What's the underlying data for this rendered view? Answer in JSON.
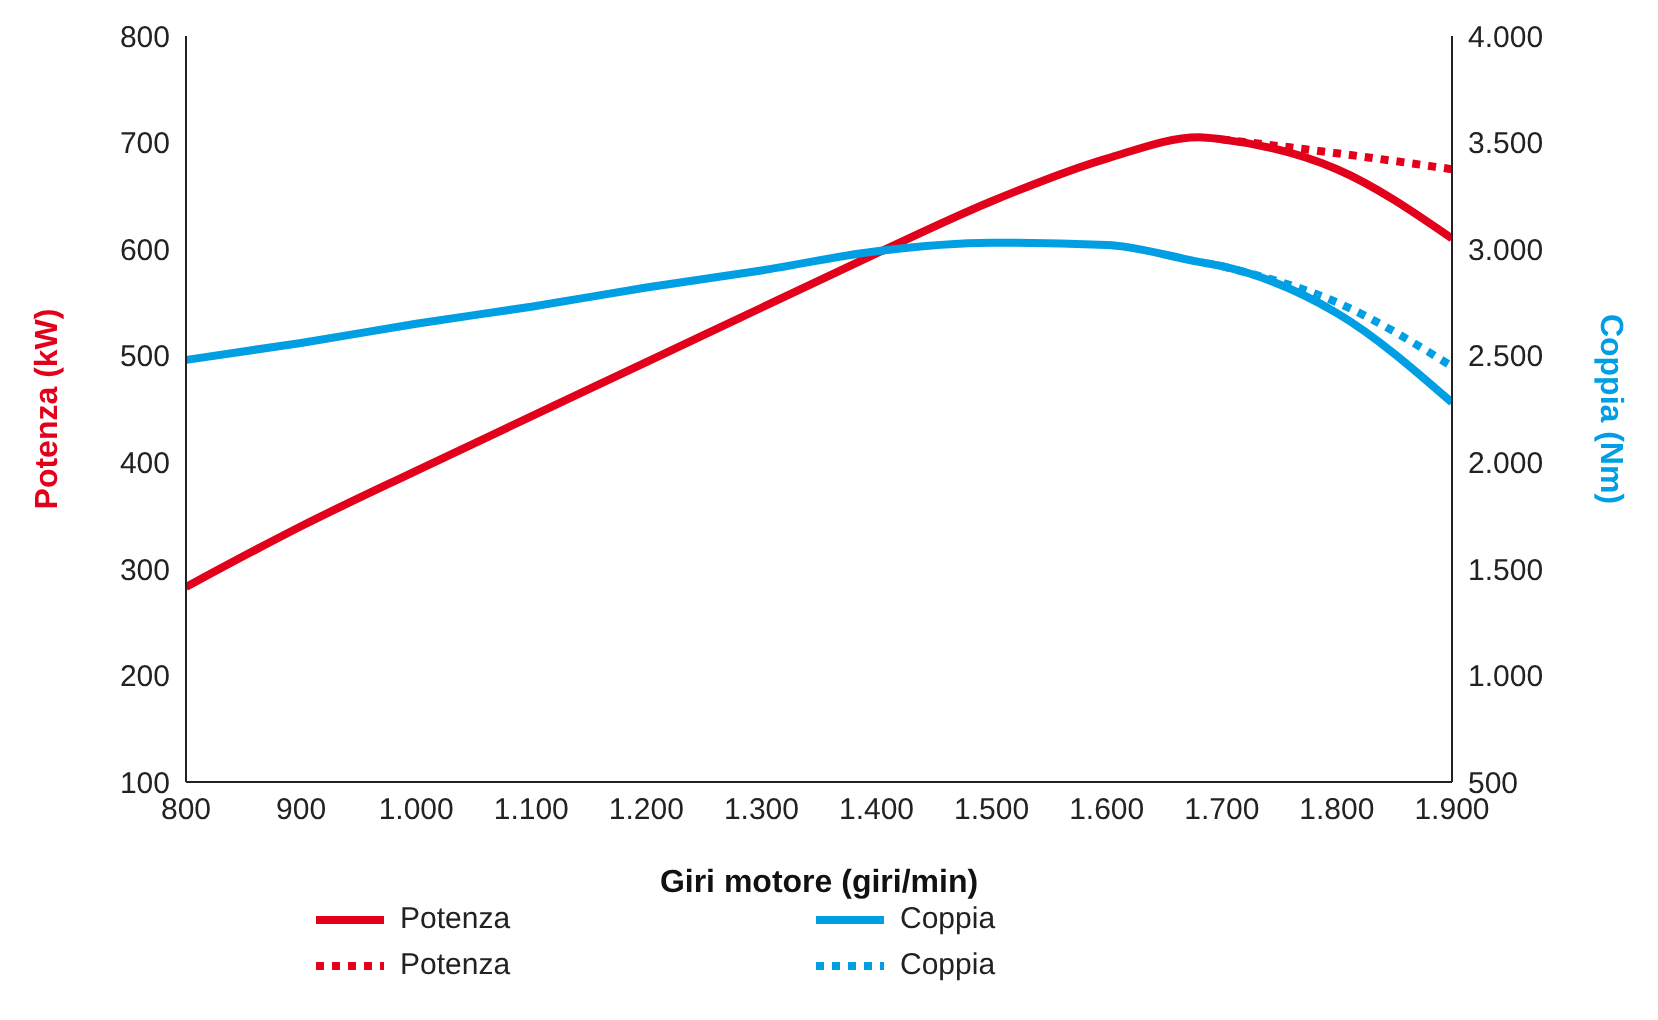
{
  "chart_data": {
    "type": "line",
    "xlabel": "Giri motore (giri/min)",
    "ylabel": "Potenza (kW)",
    "y2label": "Coppia (Nm)",
    "x": [
      800,
      900,
      1000,
      1100,
      1200,
      1300,
      1400,
      1500,
      1600,
      1680,
      1700,
      1800,
      1900
    ],
    "series": [
      {
        "name": "Potenza",
        "color": "#e2001a",
        "line_style": "solid",
        "values": [
          283,
          340,
          392,
          443,
          494,
          545,
          596,
          645,
          685,
          705,
          703,
          675,
          610
        ]
      },
      {
        "name": "Coppia",
        "color": "#009fe3",
        "axis": "y2",
        "line_style": "solid",
        "values": [
          2480,
          2560,
          2650,
          2730,
          2820,
          2900,
          2990,
          3030,
          3020,
          2940,
          2920,
          2700,
          2280
        ]
      },
      {
        "name": "Potenza",
        "color": "#e2001a",
        "line_style": "dotted",
        "values": [
          null,
          null,
          null,
          null,
          null,
          null,
          null,
          null,
          null,
          null,
          703,
          690,
          675
        ]
      },
      {
        "name": "Coppia",
        "color": "#009fe3",
        "axis": "y2",
        "line_style": "dotted",
        "values": [
          null,
          null,
          null,
          null,
          null,
          null,
          null,
          null,
          null,
          null,
          2920,
          2750,
          2450
        ]
      }
    ],
    "xlim": [
      800,
      1900
    ],
    "xticks": [
      800,
      900,
      {
        "value": 1000,
        "label": "1.000"
      },
      {
        "value": 1100,
        "label": "1.100"
      },
      {
        "value": 1200,
        "label": "1.200"
      },
      {
        "value": 1300,
        "label": "1.300"
      },
      {
        "value": 1400,
        "label": "1.400"
      },
      {
        "value": 1500,
        "label": "1.500"
      },
      {
        "value": 1600,
        "label": "1.600"
      },
      {
        "value": 1700,
        "label": "1.700"
      },
      {
        "value": 1800,
        "label": "1.800"
      },
      {
        "value": 1900,
        "label": "1.900"
      }
    ],
    "ylim": [
      100,
      800
    ],
    "yticks": [
      100,
      200,
      300,
      400,
      500,
      600,
      700,
      800
    ],
    "y2lim": [
      500,
      4000
    ],
    "y2ticks": [
      500,
      {
        "value": 1000,
        "label": "1.000"
      },
      {
        "value": 1500,
        "label": "1.500"
      },
      {
        "value": 2000,
        "label": "2.000"
      },
      {
        "value": 2500,
        "label": "2.500"
      },
      {
        "value": 3000,
        "label": "3.000"
      },
      {
        "value": 3500,
        "label": "3.500"
      },
      {
        "value": 4000,
        "label": "4.000"
      }
    ],
    "grid": false,
    "legend": "bottom",
    "marker": "none"
  }
}
